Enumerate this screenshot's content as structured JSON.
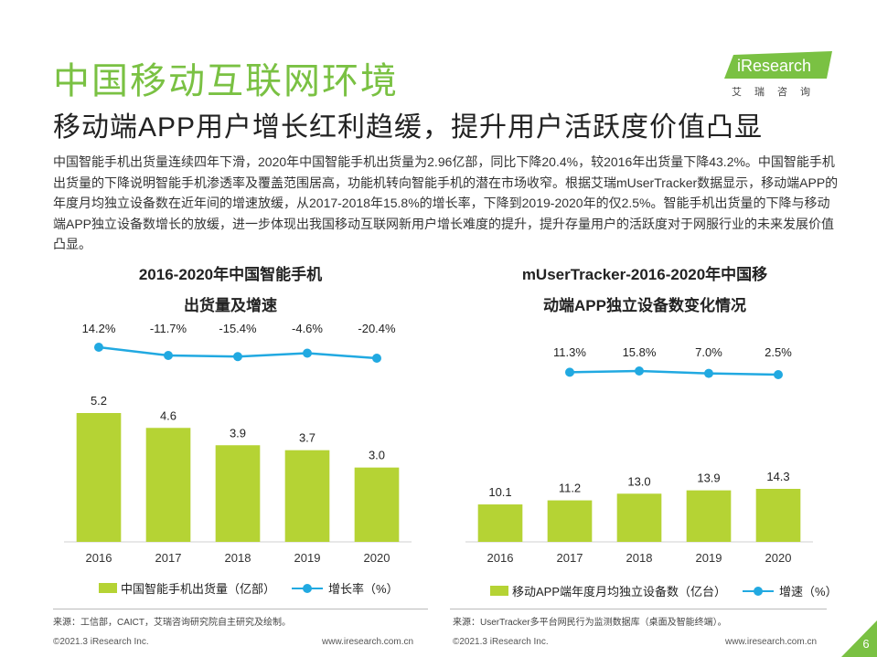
{
  "header": {
    "title": "中国移动互联网环境",
    "subtitle": "移动端APP用户增长红利趋缓，提升用户活跃度价值凸显",
    "logo_text": "iResearch",
    "logo_sub": "艾瑞咨询",
    "brand_color": "#7ac143"
  },
  "paragraph": "中国智能手机出货量连续四年下滑，2020年中国智能手机出货量为2.96亿部，同比下降20.4%，较2016年出货量下降43.2%。中国智能手机出货量的下降说明智能手机渗透率及覆盖范围居高，功能机转向智能手机的潜在市场收窄。根据艾瑞mUserTracker数据显示，移动端APP的年度月均独立设备数在近年间的增速放缓，从2017-2018年15.8%的增长率，下降到2019-2020年的仅2.5%。智能手机出货量的下降与移动端APP独立设备数增长的放缓，进一步体现出我国移动互联网新用户增长难度的提升，提升存量用户的活跃度对于网服行业的未来发展价值凸显。",
  "chart_data": [
    {
      "type": "bar",
      "title_line1": "2016-2020年中国智能手机",
      "title_line2": "出货量及增速",
      "categories": [
        "2016",
        "2017",
        "2018",
        "2019",
        "2020"
      ],
      "series": [
        {
          "name": "中国智能手机出货量（亿部）",
          "type": "bar",
          "values": [
            5.2,
            4.6,
            3.9,
            3.7,
            3.0
          ],
          "labels": [
            "5.2",
            "4.6",
            "3.9",
            "3.7",
            "3.0"
          ],
          "color": "#b5d334"
        },
        {
          "name": "增长率（%）",
          "type": "line",
          "values": [
            14.2,
            -11.7,
            -15.4,
            -4.6,
            -20.4
          ],
          "labels": [
            "14.2%",
            "-11.7%",
            "-15.4%",
            "-4.6%",
            "-20.4%"
          ],
          "color": "#21a9e1"
        }
      ]
    },
    {
      "type": "bar",
      "title_line1": "mUserTracker-2016-2020年中国移",
      "title_line2": "动端APP独立设备数变化情况",
      "categories": [
        "2016",
        "2017",
        "2018",
        "2019",
        "2020"
      ],
      "series": [
        {
          "name": "移动APP端年度月均独立设备数（亿台）",
          "type": "bar",
          "values": [
            10.1,
            11.2,
            13.0,
            13.9,
            14.3
          ],
          "labels": [
            "10.1",
            "11.2",
            "13.0",
            "13.9",
            "14.3"
          ],
          "color": "#b5d334"
        },
        {
          "name": "增速（%）",
          "type": "line",
          "values": [
            null,
            11.3,
            15.8,
            7.0,
            2.5
          ],
          "labels": [
            "",
            "11.3%",
            "15.8%",
            "7.0%",
            "2.5%"
          ],
          "color": "#21a9e1"
        }
      ]
    }
  ],
  "sources": {
    "left": "来源：工信部，CAICT，艾瑞咨询研究院自主研究及绘制。",
    "right": "来源：UserTracker多平台网民行为监测数据库（桌面及智能终端）。"
  },
  "footer": {
    "copyright_left": "©2021.3 iResearch Inc.",
    "url_left": "www.iresearch.com.cn",
    "copyright_right": "©2021.3 iResearch Inc.",
    "url_right": "www.iresearch.com.cn",
    "page_number": "6"
  }
}
